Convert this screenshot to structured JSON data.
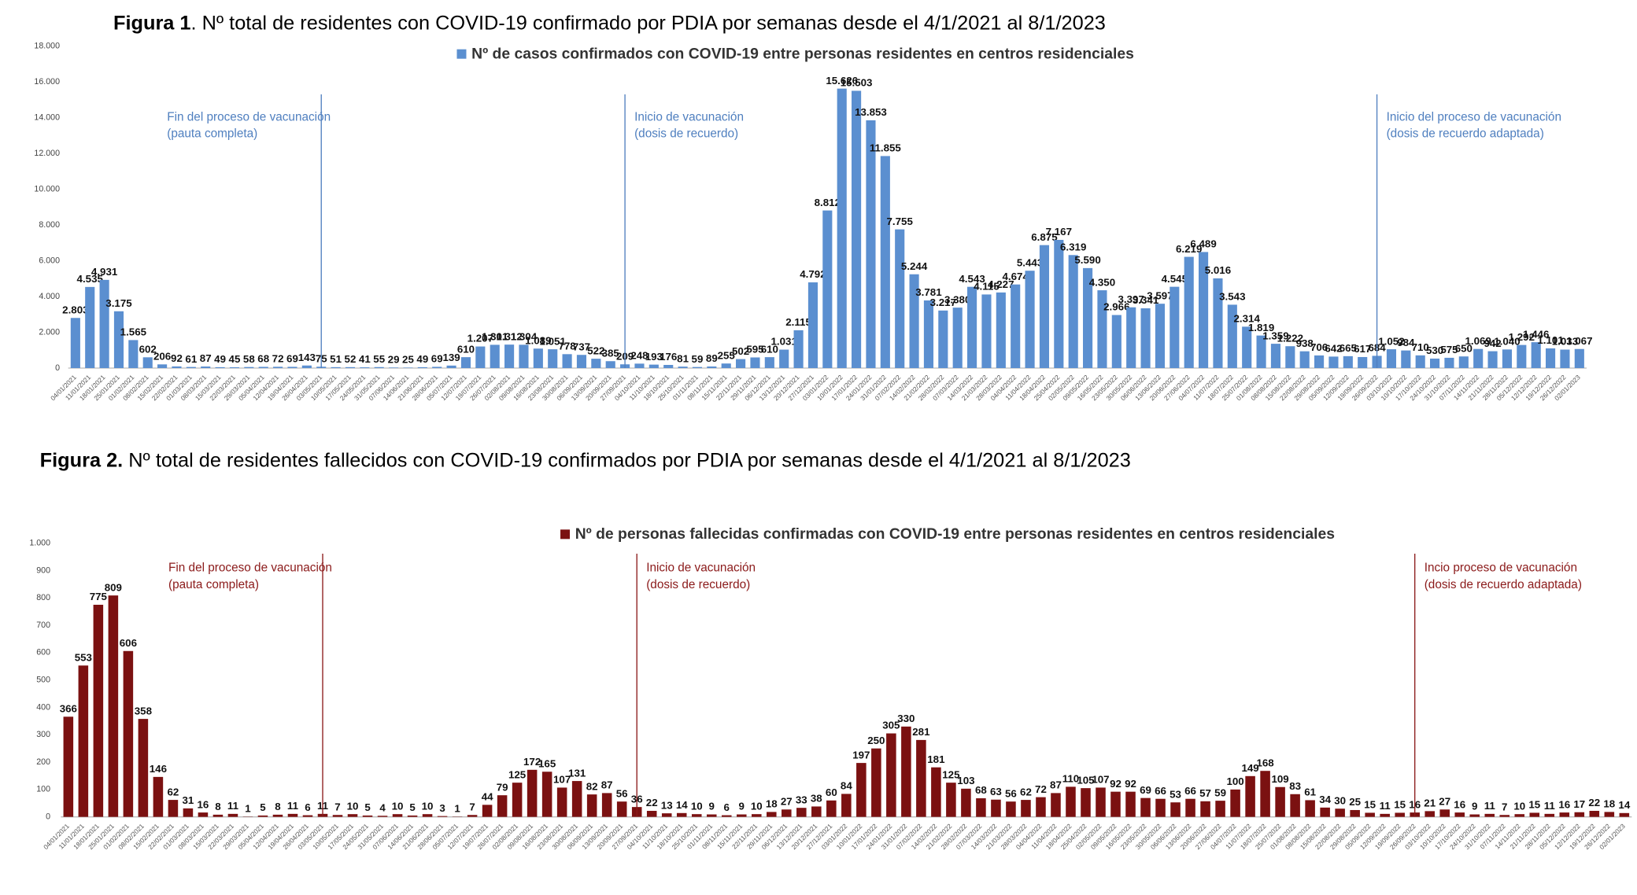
{
  "chart_data": [
    {
      "type": "bar",
      "label": "Figura 1",
      "title": ". Nº total de residentes con COVID-19 confirmado por PDIA por semanas desde el 4/1/2021 al 8/1/2023",
      "categories": [
        "04/01/2021",
        "11/01/2021",
        "18/01/2021",
        "25/01/2021",
        "01/02/2021",
        "08/02/2021",
        "15/02/2021",
        "22/02/2021",
        "01/03/2021",
        "08/03/2021",
        "15/03/2021",
        "22/03/2021",
        "29/03/2021",
        "05/04/2021",
        "12/04/2021",
        "19/04/2021",
        "26/04/2021",
        "03/05/2021",
        "10/05/2021",
        "17/05/2021",
        "24/05/2021",
        "31/05/2021",
        "07/06/2021",
        "14/06/2021",
        "21/06/2021",
        "28/06/2021",
        "05/07/2021",
        "12/07/2021",
        "19/07/2021",
        "26/07/2021",
        "02/08/2021",
        "09/08/2021",
        "16/08/2021",
        "23/08/2021",
        "30/08/2021",
        "06/09/2021",
        "13/09/2021",
        "20/09/2021",
        "27/09/2021",
        "04/10/2021",
        "11/10/2021",
        "18/10/2021",
        "25/10/2021",
        "01/11/2021",
        "08/11/2021",
        "15/11/2021",
        "22/11/2021",
        "29/11/2021",
        "06/12/2021",
        "13/12/2021",
        "20/12/2021",
        "27/12/2021",
        "03/01/2022",
        "10/01/2022",
        "17/01/2022",
        "24/01/2022",
        "31/01/2022",
        "07/02/2022",
        "14/02/2022",
        "21/02/2022",
        "28/02/2022",
        "07/03/2022",
        "14/03/2022",
        "21/03/2022",
        "28/03/2022",
        "04/04/2022",
        "11/04/2022",
        "18/04/2022",
        "25/04/2022",
        "02/05/2022",
        "09/05/2022",
        "16/05/2022",
        "23/05/2022",
        "30/05/2022",
        "06/06/2022",
        "13/06/2022",
        "20/06/2022",
        "27/06/2022",
        "04/07/2022",
        "11/07/2022",
        "18/07/2022",
        "25/07/2022",
        "01/08/2022",
        "08/08/2022",
        "15/08/2022",
        "22/08/2022",
        "29/08/2022",
        "05/09/2022",
        "12/09/2022",
        "19/09/2022",
        "26/09/2022",
        "03/10/2022",
        "10/10/2022",
        "17/10/2022",
        "24/10/2022",
        "31/10/2022",
        "07/11/2022",
        "14/11/2022",
        "21/11/2022",
        "28/11/2022",
        "05/12/2022",
        "12/12/2022",
        "19/12/2022",
        "26/12/2022",
        "02/01/2023"
      ],
      "series": [
        {
          "name": "Nº de casos confirmados con COVID-19 entre personas residentes en centros residenciales",
          "color": "#5b8fd0",
          "values": [
            2803,
            4535,
            4931,
            3175,
            1565,
            602,
            206,
            92,
            61,
            87,
            49,
            45,
            58,
            68,
            72,
            69,
            143,
            75,
            51,
            52,
            41,
            55,
            29,
            25,
            49,
            69,
            139,
            610,
            1207,
            1301,
            1312,
            1304,
            1089,
            1051,
            778,
            737,
            522,
            385,
            209,
            248,
            193,
            176,
            81,
            59,
            89,
            255,
            502,
            595,
            610,
            1031,
            2115,
            4792,
            8812,
            15626,
            15503,
            13853,
            11855,
            7755,
            5244,
            3781,
            3217,
            3380,
            4543,
            4115,
            4227,
            4674,
            5443,
            6875,
            7167,
            6319,
            5590,
            4350,
            2966,
            3397,
            3341,
            3597,
            4545,
            6219,
            6489,
            5016,
            3543,
            2314,
            1819,
            1359,
            1222,
            938,
            706,
            642,
            665,
            617,
            684,
            1052,
            984,
            710,
            530,
            575,
            650,
            1069,
            942,
            1040,
            1292,
            1446,
            1101,
            1033,
            1067
          ],
          "value_labels": [
            "2.803",
            "4.535",
            "4.931",
            "3.175",
            "1.565",
            "602",
            "206",
            "92",
            "61",
            "87",
            "49",
            "45",
            "58",
            "68",
            "72",
            "69",
            "143",
            "75",
            "51",
            "52",
            "41",
            "55",
            "29",
            "25",
            "49",
            "69",
            "139",
            "610",
            "1.207",
            "1.301",
            "1.312",
            "1.304",
            "1.089",
            "1.051",
            "778",
            "737",
            "522",
            "385",
            "209",
            "248",
            "193",
            "176",
            "81",
            "59",
            "89",
            "255",
            "502",
            "595",
            "610",
            "1.031",
            "2.115",
            "4.792",
            "8.812",
            "15.626",
            "15.503",
            "13.853",
            "11.855",
            "7.755",
            "5.244",
            "3.781",
            "3.217",
            "3.380",
            "4.543",
            "4.115",
            "4.227",
            "4.674",
            "5.443",
            "6.875",
            "7.167",
            "6.319",
            "5.590",
            "4.350",
            "2.966",
            "3.397",
            "3.341",
            "3.597",
            "4.545",
            "6.219",
            "6.489",
            "5.016",
            "3.543",
            "2.314",
            "1.819",
            "1.359",
            "1.222",
            "938",
            "706",
            "642",
            "665",
            "617",
            "684",
            "1.052",
            "984",
            "710",
            "530",
            "575",
            "650",
            "1.069",
            "942",
            "1.040",
            "1.292",
            "1.446",
            "1.101",
            "1.033",
            "1.067"
          ]
        }
      ],
      "ylim": [
        0,
        18000
      ],
      "yticks": [
        0,
        {
          "value": 2000,
          "label": "2.000"
        },
        {
          "value": 4000,
          "label": "4.000"
        },
        {
          "value": 6000,
          "label": "6.000"
        },
        {
          "value": 8000,
          "label": "8.000"
        },
        {
          "value": 10000,
          "label": "10.000"
        },
        {
          "value": 12000,
          "label": "12.000"
        },
        {
          "value": 14000,
          "label": "14.000"
        },
        {
          "value": 16000,
          "label": "16.000"
        },
        {
          "value": 18000,
          "label": "18.000"
        }
      ],
      "annotation_color": "#4f7fbf",
      "annotations": [
        {
          "text": [
            "Fin del proceso de vacunación",
            "(pauta completa)"
          ],
          "category": "03/05/2021"
        },
        {
          "text": [
            "Inicio de vacunación",
            "(dosis de recuerdo)"
          ],
          "category": "27/09/2021"
        },
        {
          "text": [
            "Inicio del proceso de vacunación",
            "(dosis de recuerdo adaptada)"
          ],
          "category": "26/09/2022"
        }
      ]
    },
    {
      "type": "bar",
      "label": "Figura 2.",
      "title": " Nº total de residentes fallecidos con COVID-19 confirmados por PDIA por semanas desde el 4/1/2021 al 8/1/2023",
      "categories": [
        "04/01/2021",
        "11/01/2021",
        "18/01/2021",
        "25/01/2021",
        "01/02/2021",
        "08/02/2021",
        "15/02/2021",
        "22/02/2021",
        "01/03/2021",
        "08/03/2021",
        "15/03/2021",
        "22/03/2021",
        "29/03/2021",
        "05/04/2021",
        "12/04/2021",
        "19/04/2021",
        "26/04/2021",
        "03/05/2021",
        "10/05/2021",
        "17/05/2021",
        "24/05/2021",
        "31/05/2021",
        "07/06/2021",
        "14/06/2021",
        "21/06/2021",
        "28/06/2021",
        "05/07/2021",
        "12/07/2021",
        "19/07/2021",
        "26/07/2021",
        "02/08/2021",
        "09/08/2021",
        "16/08/2021",
        "23/08/2021",
        "30/08/2021",
        "06/09/2021",
        "13/09/2021",
        "20/09/2021",
        "27/09/2021",
        "04/10/2021",
        "11/10/2021",
        "18/10/2021",
        "25/10/2021",
        "01/11/2021",
        "08/11/2021",
        "15/11/2021",
        "22/11/2021",
        "29/11/2021",
        "06/12/2021",
        "13/12/2021",
        "20/12/2021",
        "27/12/2021",
        "03/01/2022",
        "10/01/2022",
        "17/01/2022",
        "24/01/2022",
        "31/01/2022",
        "07/02/2022",
        "14/02/2022",
        "21/02/2022",
        "28/02/2022",
        "07/03/2022",
        "14/03/2022",
        "21/03/2022",
        "28/03/2022",
        "04/04/2022",
        "11/04/2022",
        "18/04/2022",
        "25/04/2022",
        "02/05/2022",
        "09/05/2022",
        "16/05/2022",
        "23/05/2022",
        "30/05/2022",
        "06/06/2022",
        "13/06/2022",
        "20/06/2022",
        "27/06/2022",
        "04/07/2022",
        "11/07/2022",
        "18/07/2022",
        "25/07/2022",
        "01/08/2022",
        "08/08/2022",
        "15/08/2022",
        "22/08/2022",
        "29/08/2022",
        "05/09/2022",
        "12/09/2022",
        "19/09/2022",
        "26/09/2022",
        "03/10/2022",
        "10/10/2022",
        "17/10/2022",
        "24/10/2022",
        "31/10/2022",
        "07/11/2022",
        "14/11/2022",
        "21/11/2022",
        "28/11/2022",
        "05/12/2022",
        "12/12/2022",
        "19/12/2022",
        "26/12/2022",
        "02/01/2023"
      ],
      "series": [
        {
          "name": "Nº de personas fallecidas confirmadas con COVID-19 entre personas residentes en centros residenciales",
          "color": "#7b1111",
          "values": [
            366,
            553,
            775,
            809,
            606,
            358,
            146,
            62,
            31,
            16,
            8,
            11,
            1,
            5,
            8,
            11,
            6,
            11,
            7,
            10,
            5,
            4,
            10,
            5,
            10,
            3,
            1,
            7,
            44,
            79,
            125,
            172,
            165,
            107,
            131,
            82,
            87,
            56,
            36,
            22,
            13,
            14,
            10,
            9,
            6,
            9,
            10,
            18,
            27,
            33,
            38,
            60,
            84,
            197,
            250,
            305,
            330,
            281,
            181,
            125,
            103,
            68,
            63,
            56,
            62,
            72,
            87,
            110,
            105,
            107,
            92,
            92,
            69,
            66,
            53,
            66,
            57,
            59,
            100,
            149,
            168,
            109,
            83,
            61,
            34,
            30,
            25,
            15,
            11,
            15,
            16,
            21,
            27,
            16,
            9,
            11,
            7,
            10,
            15,
            11,
            16,
            17,
            22,
            18,
            14
          ]
        }
      ],
      "ylim": [
        0,
        1000
      ],
      "yticks": [
        0,
        100,
        200,
        300,
        400,
        500,
        600,
        700,
        800,
        900,
        {
          "value": 1000,
          "label": "1.000"
        }
      ],
      "annotation_color": "#8b1a1a",
      "annotations": [
        {
          "text": [
            "Fin del proceso de vacunación",
            "(pauta completa)"
          ],
          "category": "03/05/2021"
        },
        {
          "text": [
            "Inicio de vacunación",
            "(dosis de recuerdo)"
          ],
          "category": "27/09/2021"
        },
        {
          "text": [
            "Incio proceso de vacunación",
            "(dosis de recuerdo adaptada)"
          ],
          "category": "26/09/2022"
        }
      ]
    }
  ]
}
